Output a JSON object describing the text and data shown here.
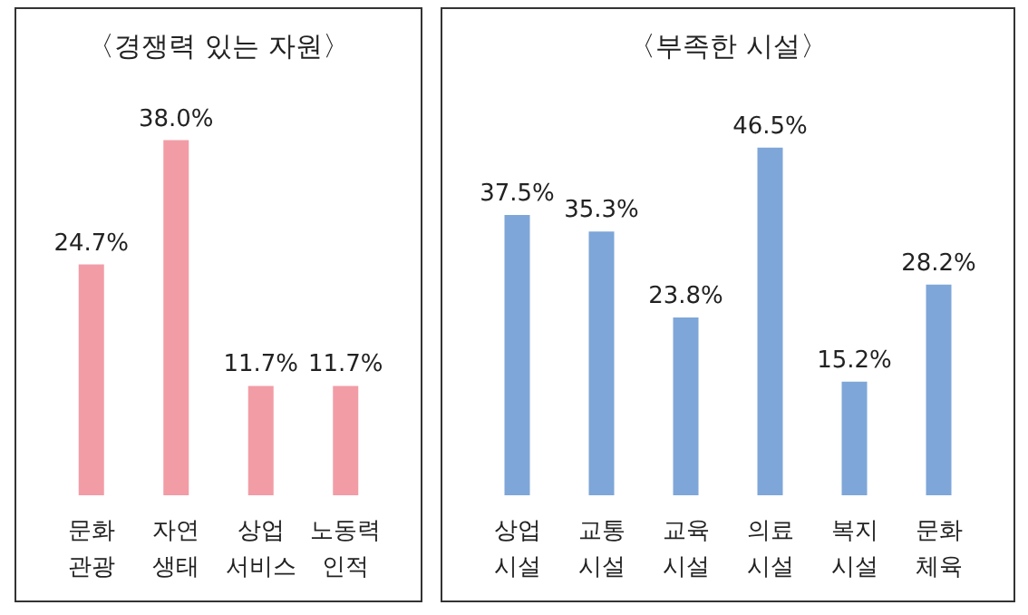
{
  "chart_data": [
    {
      "type": "bar",
      "title": "〈경쟁력 있는 자원〉",
      "categories": [
        "문화\n관광",
        "자연\n생태",
        "상업\n서비스",
        "노동력\n인적"
      ],
      "values": [
        24.7,
        38.0,
        11.7,
        11.7
      ],
      "value_labels": [
        "24.7%",
        "38.0%",
        "11.7%",
        "11.7%"
      ],
      "color": "#f29ca6",
      "tick_labels": "x",
      "grid": false
    },
    {
      "type": "bar",
      "title": "〈부족한 시설〉",
      "categories": [
        "상업\n시설",
        "교통\n시설",
        "교육\n시설",
        "의료\n시설",
        "복지\n시설",
        "문화\n체육"
      ],
      "values": [
        37.5,
        35.3,
        23.8,
        46.5,
        15.2,
        28.2
      ],
      "value_labels": [
        "37.5%",
        "35.3%",
        "23.8%",
        "46.5%",
        "15.2%",
        "28.2%"
      ],
      "color": "#7ea6d8",
      "tick_labels": "x",
      "grid": false
    }
  ]
}
